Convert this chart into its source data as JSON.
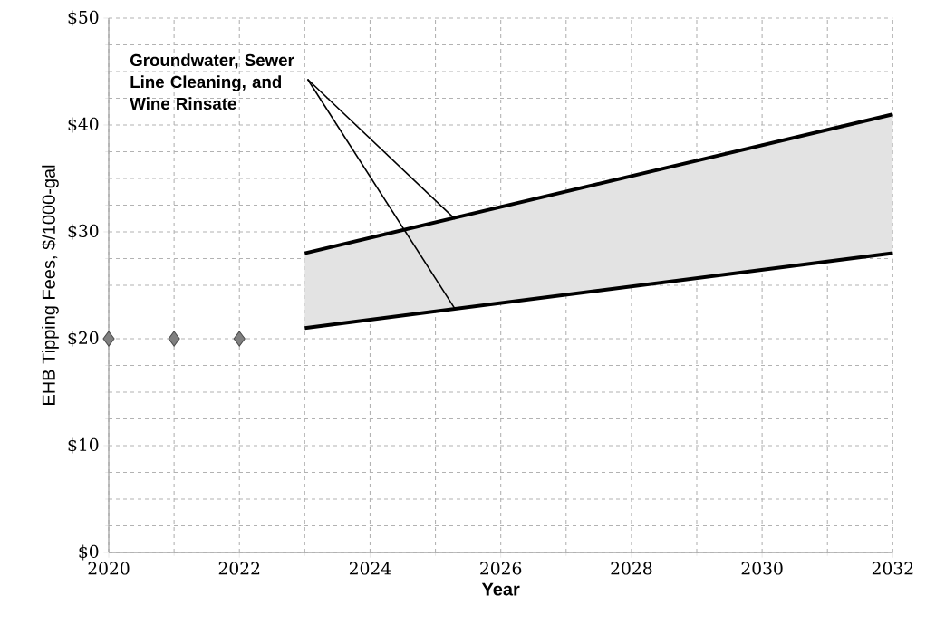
{
  "chart_data": {
    "type": "line",
    "xlabel": "Year",
    "ylabel": "EHB Tipping Fees, $/1000-gal",
    "xlim": [
      2020,
      2032
    ],
    "xticks": [
      2020,
      2022,
      2024,
      2026,
      2028,
      2030,
      2032
    ],
    "ylim": [
      0,
      50
    ],
    "yticks": [
      {
        "value": 0,
        "label": "$0"
      },
      {
        "value": 10,
        "label": "$10"
      },
      {
        "value": 20,
        "label": "$20"
      },
      {
        "value": 30,
        "label": "$30"
      },
      {
        "value": 40,
        "label": "$40"
      },
      {
        "value": 50,
        "label": "$50"
      }
    ],
    "grid": true,
    "series": [
      {
        "type": "scatter",
        "marker": "diamond",
        "color": "#808080",
        "x": [
          2020,
          2021,
          2022
        ],
        "values": [
          20,
          20,
          20
        ]
      },
      {
        "color": "#000000",
        "line_style": "solid",
        "x": [
          2023,
          2032
        ],
        "values": [
          28,
          41
        ],
        "lower": [
          21,
          28
        ],
        "upper": [
          28,
          41
        ]
      },
      {
        "color": "#000000",
        "line_style": "solid",
        "x": [
          2023,
          2032
        ],
        "values": [
          21,
          28
        ]
      }
    ],
    "annotations": [
      {
        "text": "Groundwater, Sewer Line Cleaning, and Wine Rinsate",
        "x": 2025.3,
        "y": 31.2
      }
    ]
  }
}
